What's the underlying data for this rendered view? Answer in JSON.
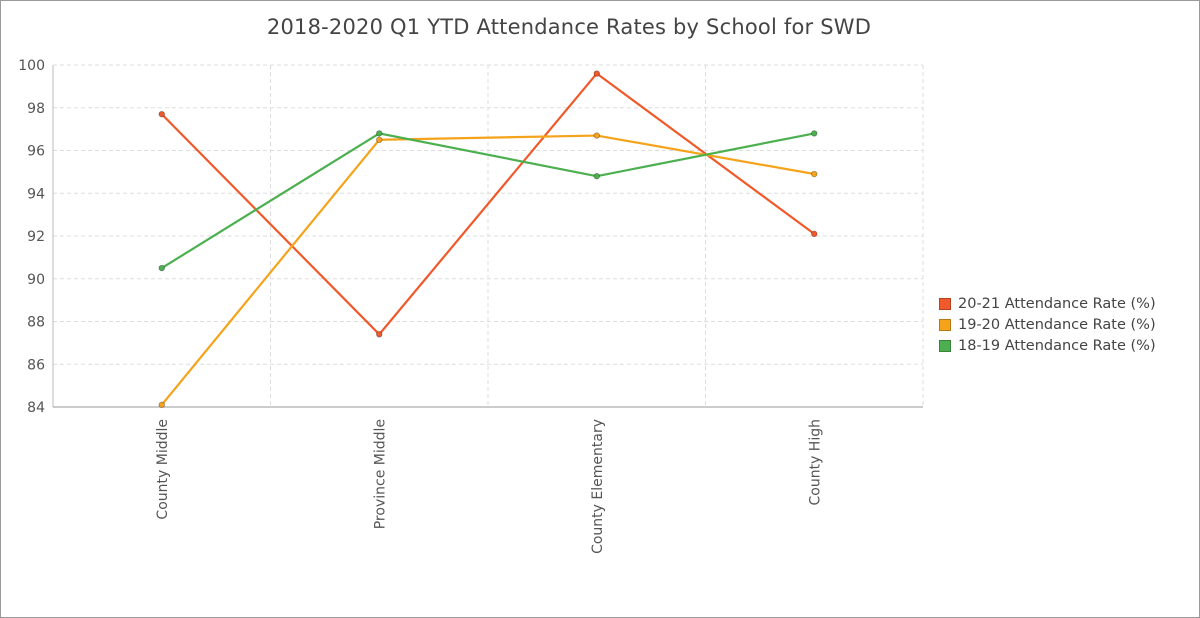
{
  "chart_data": {
    "type": "line",
    "title": "2018-2020 Q1 YTD Attendance Rates by School for SWD",
    "xlabel": "",
    "ylabel": "",
    "categories": [
      "County Middle",
      "Province Middle",
      "County Elementary",
      "County High"
    ],
    "ylim": [
      84,
      100
    ],
    "yticks": [
      84,
      86,
      88,
      90,
      92,
      94,
      96,
      98,
      100
    ],
    "grid": true,
    "legend_position": "right",
    "series": [
      {
        "name": "20-21 Attendance Rate (%)",
        "color": "#f0592a",
        "values": [
          97.7,
          87.4,
          99.6,
          92.1
        ]
      },
      {
        "name": "19-20 Attendance Rate (%)",
        "color": "#f5a31a",
        "values": [
          84.1,
          96.5,
          96.7,
          94.9
        ]
      },
      {
        "name": "18-19 Attendance Rate (%)",
        "color": "#4caf50",
        "values": [
          90.5,
          96.8,
          94.8,
          96.8
        ]
      }
    ]
  }
}
